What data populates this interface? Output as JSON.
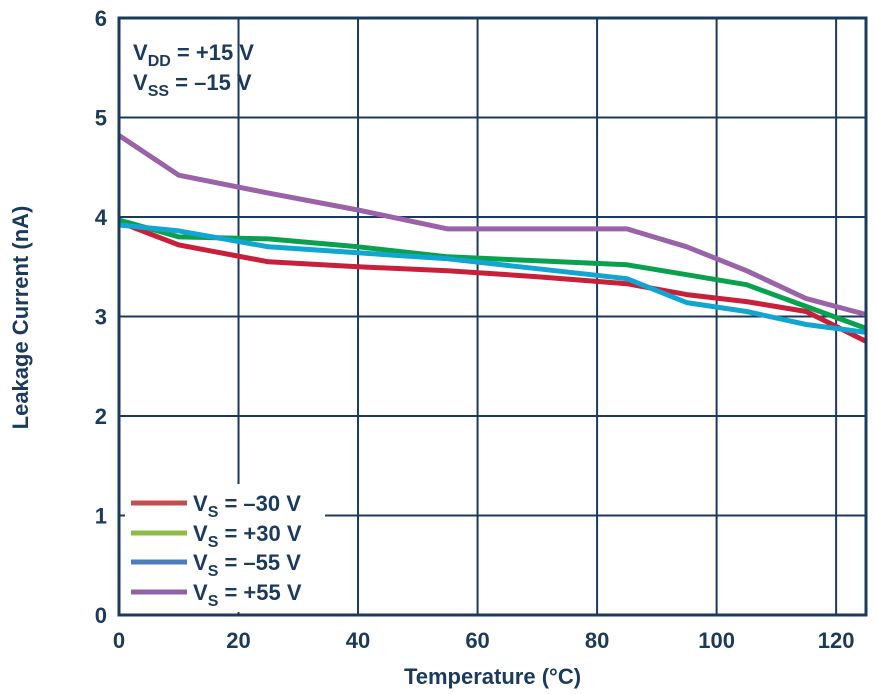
{
  "chart_data": {
    "type": "line",
    "title": "",
    "xlabel": "Temperature (°C)",
    "ylabel": "Leakage Current (nA)",
    "xlim": [
      0,
      125
    ],
    "ylim": [
      0,
      6
    ],
    "x_ticks": [
      0,
      20,
      40,
      60,
      80,
      100,
      120
    ],
    "y_ticks": [
      0,
      1,
      2,
      3,
      4,
      5,
      6
    ],
    "x_tick_labels": [
      "0",
      "20",
      "40",
      "60",
      "80",
      "100",
      "120"
    ],
    "y_tick_labels": [
      "0",
      "1",
      "2",
      "3",
      "4",
      "5",
      "6"
    ],
    "grid": true,
    "annotation": {
      "line1": {
        "main": "V",
        "sub": "DD",
        "rest": " = +15 V"
      },
      "line2": {
        "main": "V",
        "sub": "SS",
        "rest": " = –15 V"
      }
    },
    "legend_position": "bottom-left",
    "series": [
      {
        "name": "VS = –30 V",
        "label_main": "V",
        "label_sub": "S",
        "label_rest": " = –30 V",
        "legend_color": "#c0504d",
        "line_color": "#c8203a",
        "points": [
          [
            0,
            3.95
          ],
          [
            10,
            3.72
          ],
          [
            25,
            3.55
          ],
          [
            40,
            3.5
          ],
          [
            55,
            3.46
          ],
          [
            70,
            3.4
          ],
          [
            85,
            3.33
          ],
          [
            95,
            3.22
          ],
          [
            105,
            3.15
          ],
          [
            115,
            3.05
          ],
          [
            125,
            2.75
          ]
        ]
      },
      {
        "name": "VS = +30 V",
        "label_main": "V",
        "label_sub": "S",
        "label_rest": " = +30 V",
        "legend_color": "#8fbc45",
        "line_color": "#0aa14e",
        "points": [
          [
            0,
            3.97
          ],
          [
            10,
            3.8
          ],
          [
            25,
            3.78
          ],
          [
            40,
            3.7
          ],
          [
            55,
            3.6
          ],
          [
            70,
            3.56
          ],
          [
            85,
            3.52
          ],
          [
            95,
            3.42
          ],
          [
            105,
            3.32
          ],
          [
            115,
            3.1
          ],
          [
            125,
            2.88
          ]
        ]
      },
      {
        "name": "VS = –55 V",
        "label_main": "V",
        "label_sub": "S",
        "label_rest": " = –55 V",
        "legend_color": "#4a7ebb",
        "line_color": "#13a5d1",
        "points": [
          [
            0,
            3.92
          ],
          [
            10,
            3.86
          ],
          [
            25,
            3.7
          ],
          [
            40,
            3.64
          ],
          [
            55,
            3.58
          ],
          [
            70,
            3.48
          ],
          [
            85,
            3.38
          ],
          [
            95,
            3.14
          ],
          [
            105,
            3.05
          ],
          [
            115,
            2.92
          ],
          [
            125,
            2.84
          ]
        ]
      },
      {
        "name": "VS = +55 V",
        "label_main": "V",
        "label_sub": "S",
        "label_rest": " = +55 V",
        "legend_color": "#8e61a8",
        "line_color": "#9a62a9",
        "points": [
          [
            0,
            4.82
          ],
          [
            10,
            4.42
          ],
          [
            25,
            4.24
          ],
          [
            40,
            4.07
          ],
          [
            55,
            3.88
          ],
          [
            70,
            3.88
          ],
          [
            85,
            3.88
          ],
          [
            95,
            3.7
          ],
          [
            105,
            3.46
          ],
          [
            115,
            3.18
          ],
          [
            125,
            3.02
          ]
        ]
      }
    ]
  }
}
